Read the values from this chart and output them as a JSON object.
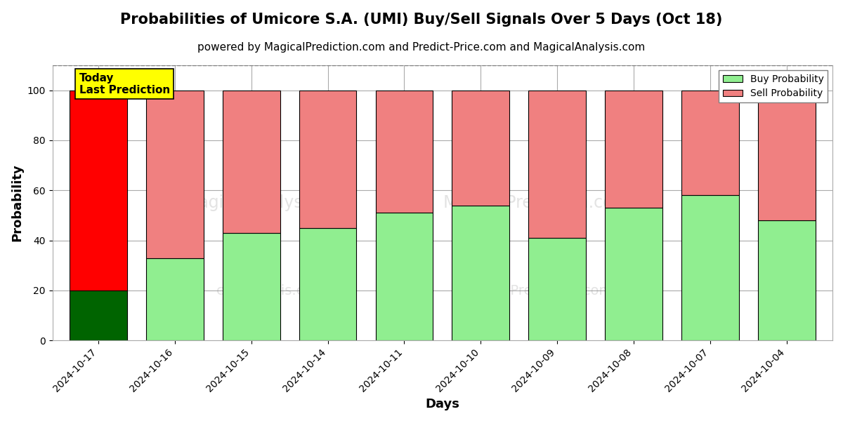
{
  "title": "Probabilities of Umicore S.A. (UMI) Buy/Sell Signals Over 5 Days (Oct 18)",
  "subtitle": "powered by MagicalPrediction.com and Predict-Price.com and MagicalAnalysis.com",
  "xlabel": "Days",
  "ylabel": "Probability",
  "categories": [
    "2024-10-17",
    "2024-10-16",
    "2024-10-15",
    "2024-10-14",
    "2024-10-11",
    "2024-10-10",
    "2024-10-09",
    "2024-10-08",
    "2024-10-07",
    "2024-10-04"
  ],
  "buy_values": [
    20,
    33,
    43,
    45,
    51,
    54,
    41,
    53,
    58,
    48
  ],
  "sell_values": [
    80,
    67,
    57,
    55,
    49,
    46,
    59,
    47,
    42,
    52
  ],
  "buy_color_first": "#006400",
  "sell_color_first": "#ff0000",
  "buy_color_rest": "#90ee90",
  "sell_color_rest": "#f08080",
  "bar_edgecolor": "#000000",
  "ylim": [
    0,
    110
  ],
  "yticks": [
    0,
    20,
    40,
    60,
    80,
    100
  ],
  "dashed_line_y": 110,
  "legend_buy_label": "Buy Probability",
  "legend_sell_label": "Sell Probability",
  "annotation_text": "Today\nLast Prediction",
  "annotation_bg": "#ffff00",
  "grid_color": "#aaaaaa",
  "fig_bg": "#ffffff",
  "title_fontsize": 15,
  "subtitle_fontsize": 11,
  "axis_label_fontsize": 13
}
